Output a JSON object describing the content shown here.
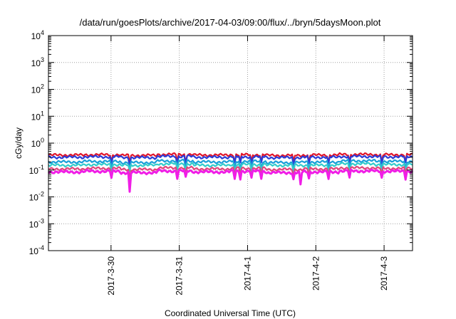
{
  "chart_data": {
    "type": "line",
    "title": "/data/run/goesPlots/archive/2017-04-03/09:00/flux/../bryn/5daysMoon.plot",
    "xlabel": "Coordinated Universal Time (UTC)",
    "ylabel": "cGy/day",
    "yscale": "log",
    "ylim": [
      0.0001,
      10000
    ],
    "ytick_values": [
      0.0001,
      0.001,
      0.01,
      0.1,
      1,
      10,
      100,
      1000,
      10000
    ],
    "ytick_labels": [
      {
        "base": "10",
        "exp": "-4"
      },
      {
        "base": "10",
        "exp": "-3"
      },
      {
        "base": "10",
        "exp": "-2"
      },
      {
        "base": "10",
        "exp": "-1"
      },
      {
        "base": "10",
        "exp": "0"
      },
      {
        "base": "10",
        "exp": "1"
      },
      {
        "base": "10",
        "exp": "2"
      },
      {
        "base": "10",
        "exp": "3"
      },
      {
        "base": "10",
        "exp": "4"
      }
    ],
    "xlim": [
      "2017-03-29 02:00",
      "2017-04-03 10:00"
    ],
    "xtick_values": [
      "2017-03-30 00:00",
      "2017-03-31 00:00",
      "2017-04-01 00:00",
      "2017-04-02 00:00",
      "2017-04-03 00:00"
    ],
    "xtick_labels": [
      "2017-3-30",
      "2017-3-31",
      "2017-4-1",
      "2017-4-2",
      "2017-4-3"
    ],
    "grid": true,
    "series": [
      {
        "color": "#e0152b",
        "values": [
          0.36,
          0.37,
          0.35,
          0.38,
          0.36,
          0.37,
          0.35,
          0.36,
          0.38,
          0.37
        ]
      },
      {
        "color": "#2b3bd6",
        "values": [
          0.3,
          0.31,
          0.29,
          0.32,
          0.3,
          0.31,
          0.29,
          0.3,
          0.32,
          0.31
        ]
      },
      {
        "color": "#1a9fd9",
        "values": [
          0.2,
          0.21,
          0.19,
          0.22,
          0.2,
          0.21,
          0.19,
          0.2,
          0.22,
          0.21
        ]
      },
      {
        "color": "#33cccc",
        "values": [
          0.15,
          0.16,
          0.15,
          0.17,
          0.15,
          0.16,
          0.15,
          0.15,
          0.17,
          0.16
        ]
      },
      {
        "color": "#e0457a",
        "values": [
          0.11,
          0.115,
          0.105,
          0.12,
          0.11,
          0.115,
          0.105,
          0.11,
          0.12,
          0.115
        ]
      },
      {
        "color": "#f01ee6",
        "values": [
          0.085,
          0.09,
          0.08,
          0.092,
          0.085,
          0.09,
          0.08,
          0.085,
          0.092,
          0.09
        ]
      }
    ]
  }
}
